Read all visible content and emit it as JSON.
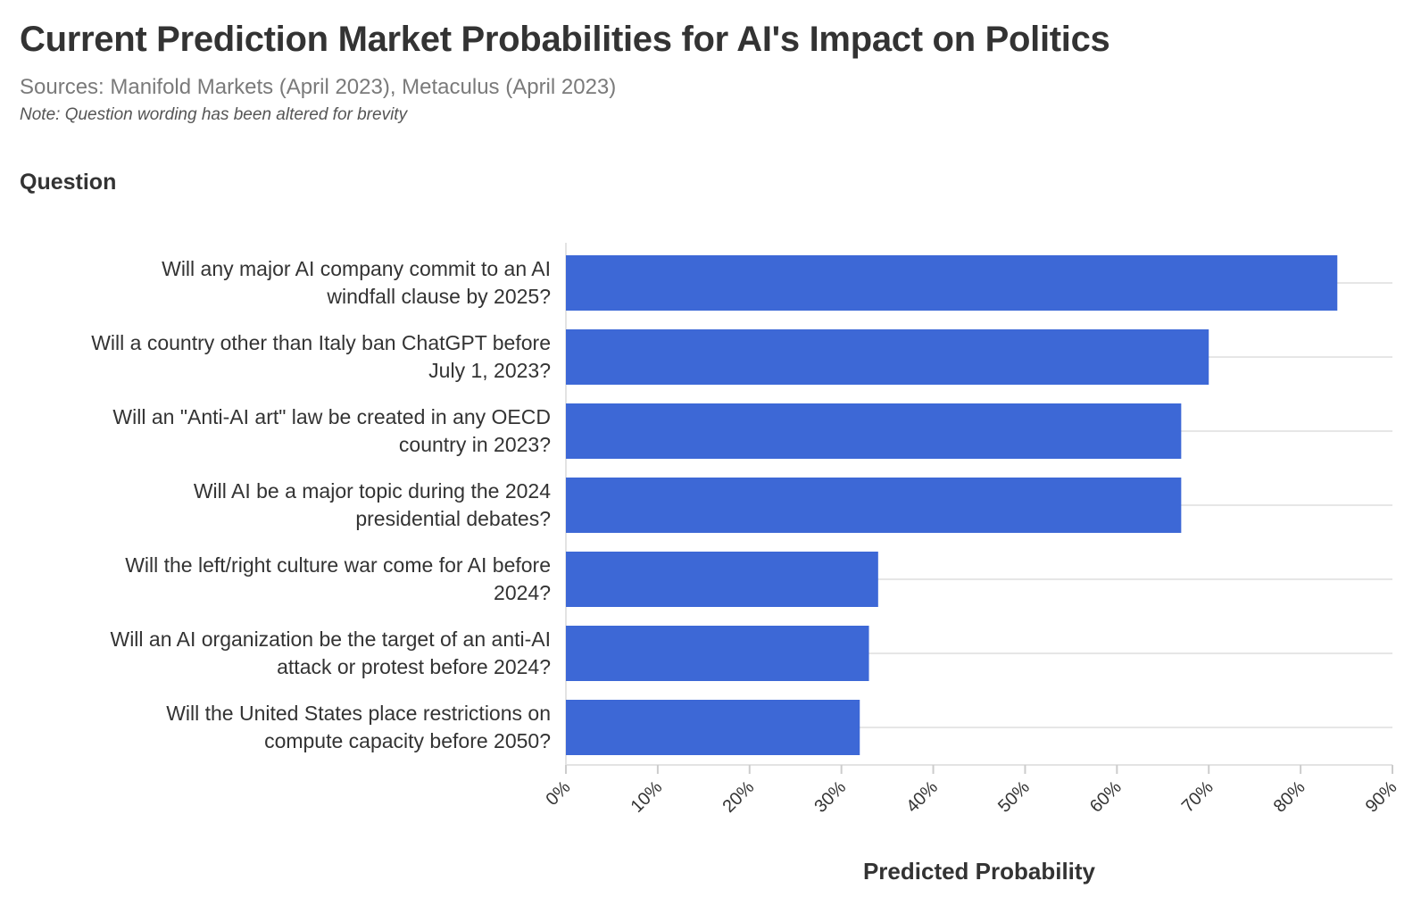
{
  "chart_data": {
    "type": "bar",
    "orientation": "horizontal",
    "title": "Current Prediction Market Probabilities for AI's Impact on Politics",
    "subtitle": "Sources: Manifold Markets (April 2023), Metaculus (April 2023)",
    "note": "Note: Question wording has been altered for brevity",
    "ylabel": "Question",
    "xlabel": "Predicted Probability",
    "categories": [
      [
        "Will any major AI company commit to an AI",
        "windfall clause by 2025?"
      ],
      [
        "Will a country other than Italy ban ChatGPT before",
        "July 1, 2023?"
      ],
      [
        "Will an \"Anti-AI art\" law be created in any OECD",
        "country in 2023?"
      ],
      [
        "Will AI be a major topic during the 2024",
        "presidential debates?"
      ],
      [
        "Will the left/right culture war come for AI before",
        "2024?"
      ],
      [
        "Will an AI organization be the target of an anti-AI",
        "attack or protest before 2024?"
      ],
      [
        "Will the United States place restrictions on",
        "compute capacity before 2050?"
      ]
    ],
    "values": [
      84,
      70,
      67,
      67,
      34,
      33,
      32
    ],
    "xlim": [
      0,
      90
    ],
    "xticks": [
      "0%",
      "10%",
      "20%",
      "30%",
      "40%",
      "50%",
      "60%",
      "70%",
      "80%",
      "90%"
    ],
    "bar_color": "#3d68d6",
    "grid": true
  }
}
